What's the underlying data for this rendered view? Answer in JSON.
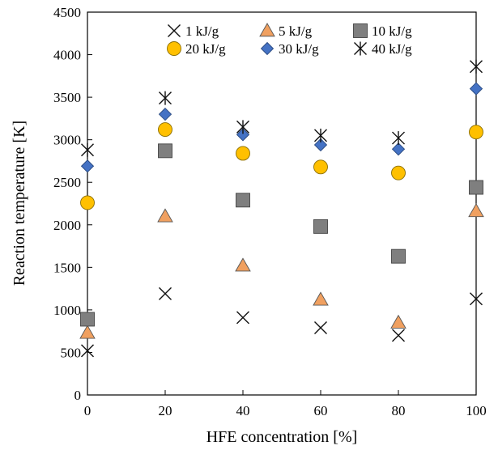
{
  "chart_data": {
    "type": "scatter",
    "title": "",
    "xlabel": "HFE concentration [%]",
    "ylabel": "Reaction temperature [K]",
    "xlim": [
      0,
      100
    ],
    "ylim": [
      0,
      4500
    ],
    "x_ticks": [
      0,
      20,
      40,
      60,
      80,
      100
    ],
    "y_ticks": [
      0,
      500,
      1000,
      1500,
      2000,
      2500,
      3000,
      3500,
      4000,
      4500
    ],
    "grid": false,
    "legend_position": "top-inside",
    "x": [
      0,
      20,
      40,
      60,
      80,
      100
    ],
    "series": [
      {
        "name": "1 kJ/g",
        "marker": "x",
        "color": "#1a1a1a",
        "values": [
          520,
          1190,
          910,
          790,
          700,
          1130
        ]
      },
      {
        "name": "5 kJ/g",
        "marker": "triangle",
        "color": "#f0a060",
        "values": [
          730,
          2100,
          1520,
          1120,
          850,
          2160
        ]
      },
      {
        "name": "10 kJ/g",
        "marker": "square",
        "color": "#7f7f7f",
        "values": [
          890,
          2870,
          2290,
          1980,
          1630,
          2440
        ]
      },
      {
        "name": "20 kJ/g",
        "marker": "circle",
        "color": "#ffc000",
        "values": [
          2260,
          3120,
          2840,
          2680,
          2610,
          3090
        ]
      },
      {
        "name": "30 kJ/g",
        "marker": "diamond",
        "color": "#4472c4",
        "values": [
          2690,
          3300,
          3060,
          2940,
          2890,
          3600
        ]
      },
      {
        "name": "40 kJ/g",
        "marker": "asterisk",
        "color": "#1a1a1a",
        "values": [
          2880,
          3490,
          3150,
          3050,
          3020,
          3860
        ]
      }
    ]
  }
}
